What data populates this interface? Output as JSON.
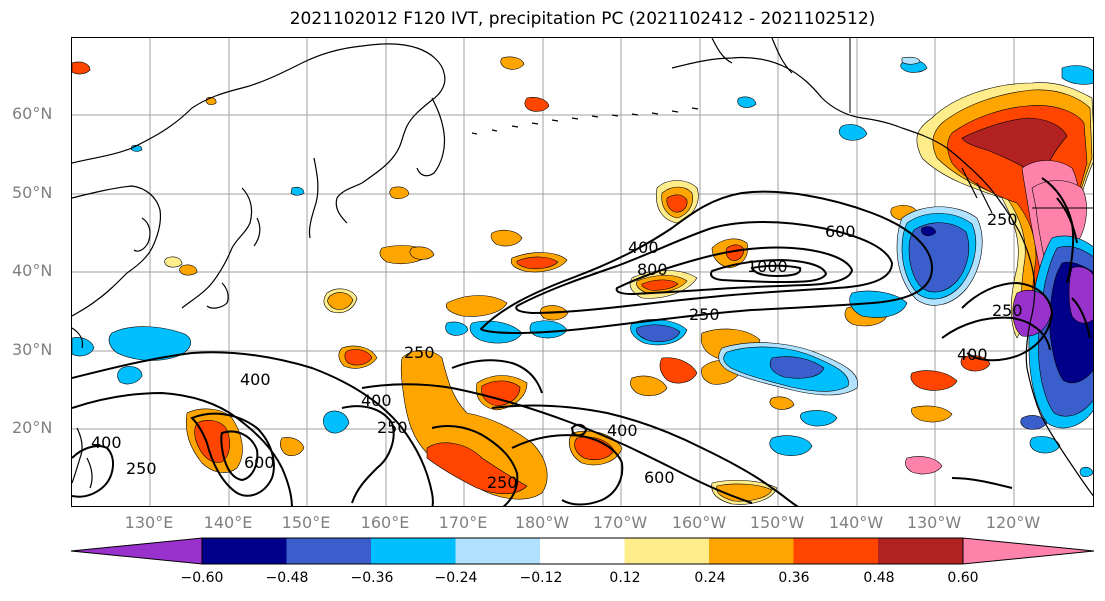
{
  "title": "2021102012 F120 IVT, precipitation PC (2021102412 - 2021102512)",
  "lat_labels": [
    "60°N",
    "50°N",
    "40°N",
    "30°N",
    "20°N"
  ],
  "lon_labels": [
    "130°E",
    "140°E",
    "150°E",
    "160°E",
    "170°E",
    "180°W",
    "170°W",
    "160°W",
    "150°W",
    "140°W",
    "130°W",
    "120°W"
  ],
  "contour_labels": [
    "400",
    "800",
    "1000",
    "600",
    "250",
    "250",
    "400",
    "400",
    "250",
    "400",
    "250",
    "600",
    "600",
    "250",
    "400",
    "250",
    "400",
    "250"
  ],
  "colorbar": {
    "ticks": [
      "−0.60",
      "−0.48",
      "−0.36",
      "−0.24",
      "−0.12",
      "0.12",
      "0.24",
      "0.36",
      "0.48",
      "0.60"
    ],
    "colors": [
      "#9932CC",
      "#00008B",
      "#3A5FCD",
      "#00BFFF",
      "#B0E2FF",
      "#FFFFFF",
      "#FFEC8B",
      "#FFA500",
      "#FF4500",
      "#B22222",
      "#FF82AB"
    ]
  },
  "fill_colors": {
    "light_yellow": "#FFEC8B",
    "orange": "#FFA500",
    "red_orange": "#FF4500",
    "dark_red": "#B22222",
    "pink": "#FF82AB",
    "light_blue": "#B0E2FF",
    "sky_blue": "#00BFFF",
    "royal_blue": "#3A5FCD",
    "navy": "#00008B",
    "purple": "#9932CC"
  }
}
